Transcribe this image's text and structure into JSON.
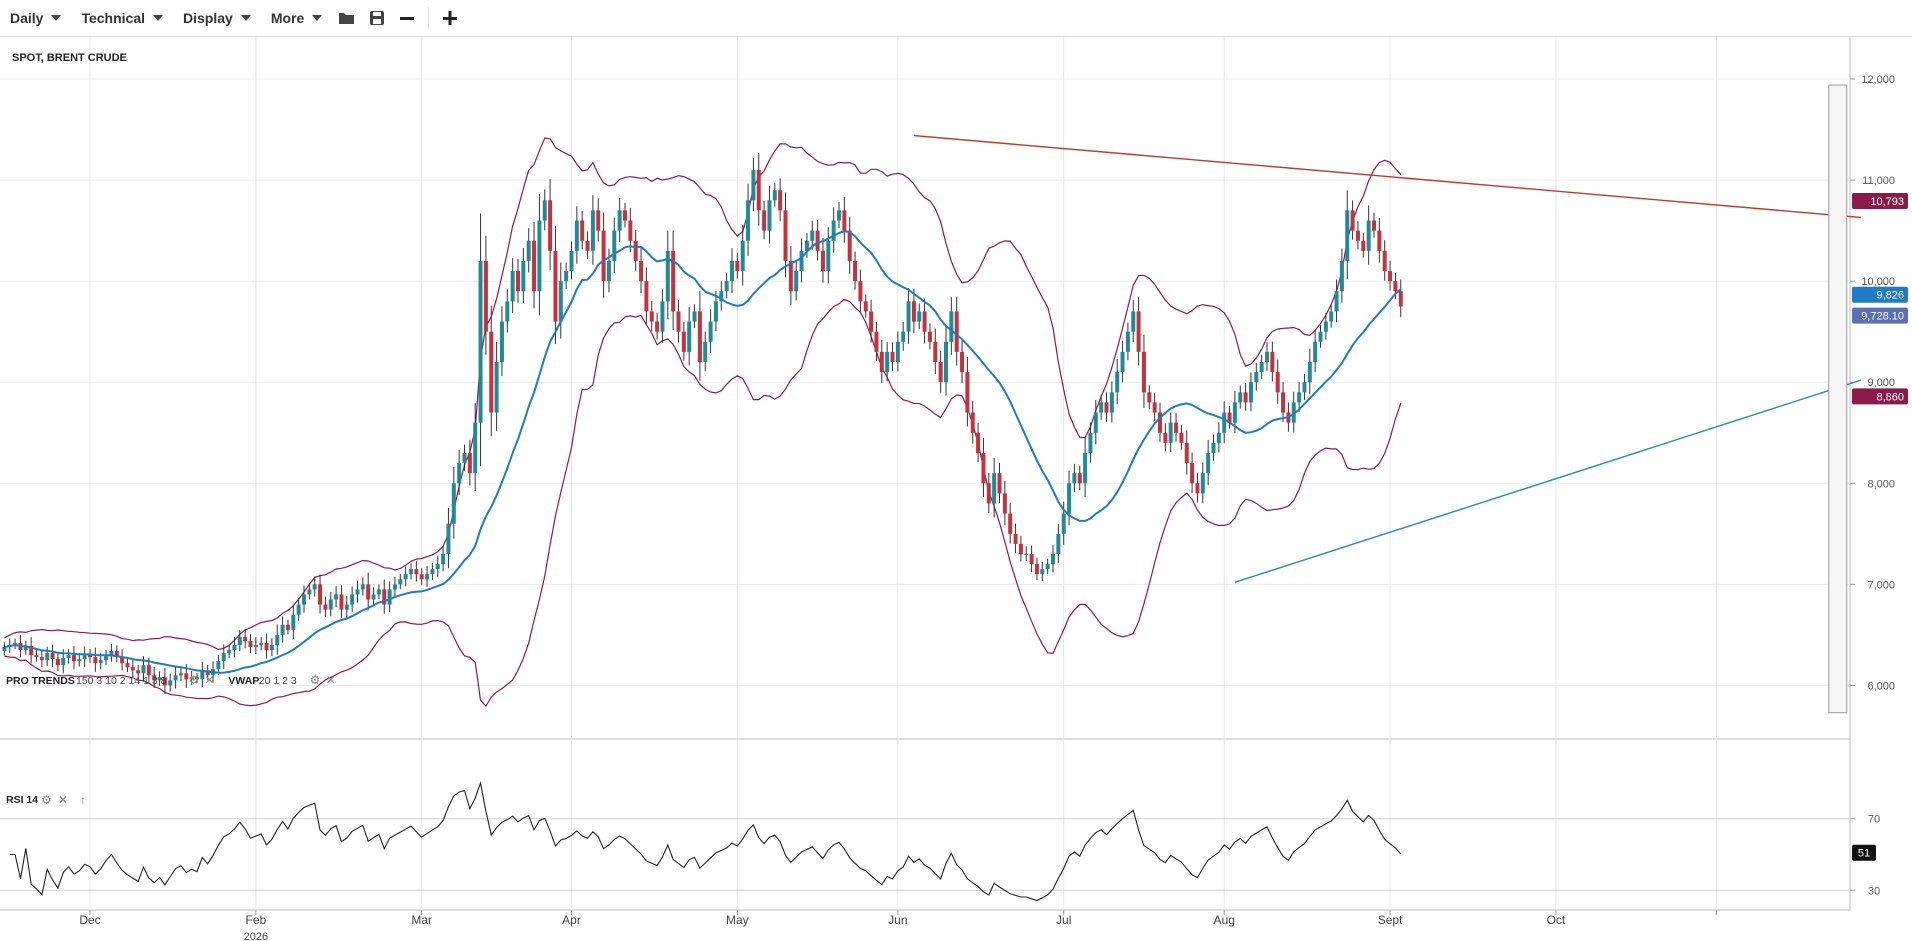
{
  "toolbar": {
    "menus": [
      "Daily",
      "Technical",
      "Display",
      "More"
    ],
    "icons": [
      "folder-icon",
      "save-icon",
      "zoom-out-icon",
      "zoom-in-icon"
    ]
  },
  "chart_data": {
    "type": "candlestick",
    "title": "SPOT, BRENT CRUDE",
    "price_axis": {
      "ticks": [
        6000,
        7000,
        8000,
        9000,
        10000,
        11000,
        12000
      ],
      "tick_labels": [
        "6,000",
        "7,000",
        "8,000",
        "9,000",
        "10,000",
        "11,000",
        "12,000"
      ],
      "range": [
        5450,
        12000
      ]
    },
    "x_axis": {
      "labels": [
        "Dec",
        "2026",
        "Feb",
        "Mar",
        "Apr",
        "May",
        "Jun",
        "Jul",
        "Aug",
        "Sept",
        "Oct"
      ],
      "year_marker": "2026",
      "month_offsets_days": [
        0,
        31,
        62,
        90,
        121,
        151,
        182,
        212,
        243,
        274,
        304
      ]
    },
    "grid": true,
    "indicators": [
      {
        "label": "PRO TRENDS",
        "params": "150 3 10 2 14 1 3 8"
      },
      {
        "label": "VWAP",
        "params": "20 1 2 3"
      }
    ],
    "price_tags": [
      {
        "value": 10793,
        "text": "10,793",
        "color": "#8b1a4a"
      },
      {
        "value": 9826,
        "text": "9,826",
        "color": "#1e7bc4"
      },
      {
        "value": 9728.1,
        "text": "9,728.10",
        "color": "#5b6fb5"
      },
      {
        "value": 8860,
        "text": "8,860",
        "color": "#8b1a4a"
      }
    ],
    "trendlines": [
      {
        "name": "resistance",
        "color": "#c0392b",
        "from": {
          "day": 154,
          "price": 11440
        },
        "to": {
          "day": 331,
          "price": 10630
        }
      },
      {
        "name": "support",
        "color": "#2b8aa8",
        "from": {
          "day": 214,
          "price": 7020
        },
        "to": {
          "day": 331,
          "price": 9020
        }
      }
    ],
    "close_series": {
      "start_day": -16,
      "step_days": 1,
      "values": [
        6380,
        6400,
        6420,
        6350,
        6390,
        6300,
        6280,
        6250,
        6320,
        6260,
        6200,
        6270,
        6300,
        6240,
        6260,
        6300,
        6280,
        6220,
        6250,
        6300,
        6340,
        6280,
        6220,
        6180,
        6150,
        6120,
        6200,
        6100,
        6050,
        6080,
        6000,
        6050,
        6100,
        6120,
        6060,
        6080,
        6060,
        6150,
        6100,
        6160,
        6240,
        6320,
        6350,
        6400,
        6480,
        6440,
        6380,
        6400,
        6420,
        6350,
        6400,
        6500,
        6600,
        6550,
        6700,
        6800,
        6900,
        6950,
        7000,
        6800,
        6750,
        6850,
        6900,
        6750,
        6800,
        6900,
        6950,
        7000,
        6850,
        6900,
        6950,
        6800,
        6950,
        7000,
        7050,
        7100,
        7150,
        7100,
        7050,
        7100,
        7150,
        7200,
        7300,
        7600,
        8000,
        8200,
        8300,
        8100,
        8600,
        10200,
        9500,
        8700,
        9200,
        9600,
        9800,
        10100,
        9900,
        10200,
        10400,
        9900,
        10600,
        10800,
        10300,
        9600,
        10000,
        10100,
        10300,
        10600,
        10400,
        10300,
        10700,
        10500,
        10000,
        10200,
        10500,
        10700,
        10600,
        10400,
        10200,
        10000,
        9700,
        9600,
        9500,
        9800,
        10300,
        9700,
        9500,
        9300,
        9600,
        9700,
        9200,
        9400,
        9600,
        9800,
        9900,
        10000,
        10200,
        10100,
        10400,
        10800,
        11100,
        10700,
        10500,
        10800,
        10900,
        10700,
        10200,
        9900,
        10100,
        10300,
        10400,
        10500,
        10300,
        10100,
        10400,
        10600,
        10700,
        10500,
        10200,
        10000,
        9800,
        9700,
        9500,
        9300,
        9100,
        9300,
        9200,
        9400,
        9500,
        9800,
        9600,
        9700,
        9500,
        9400,
        9200,
        9000,
        9400,
        9700,
        9300,
        9100,
        8700,
        8500,
        8300,
        8000,
        7800,
        8100,
        7900,
        7700,
        7500,
        7400,
        7300,
        7300,
        7200,
        7100,
        7150,
        7200,
        7300,
        7500,
        7700,
        8000,
        8100,
        8000,
        8300,
        8500,
        8700,
        8800,
        8700,
        8900,
        9100,
        9300,
        9500,
        9700,
        9300,
        8900,
        8800,
        8700,
        8500,
        8400,
        8600,
        8500,
        8400,
        8200,
        8000,
        7900,
        8100,
        8300,
        8400,
        8500,
        8700,
        8600,
        8800,
        8900,
        8800,
        9000,
        9100,
        9200,
        9300,
        9100,
        8900,
        8700,
        8600,
        8800,
        8900,
        9000,
        9200,
        9400,
        9500,
        9600,
        9700,
        9900,
        10200,
        10700,
        10500,
        10400,
        10300,
        10600,
        10500,
        10300,
        10100,
        10000,
        9900,
        9750
      ]
    },
    "rsi": {
      "label": "RSI",
      "period": 14,
      "levels": [
        70,
        30
      ],
      "range": [
        0,
        100
      ],
      "last_value": 51,
      "last_text": "51"
    }
  }
}
